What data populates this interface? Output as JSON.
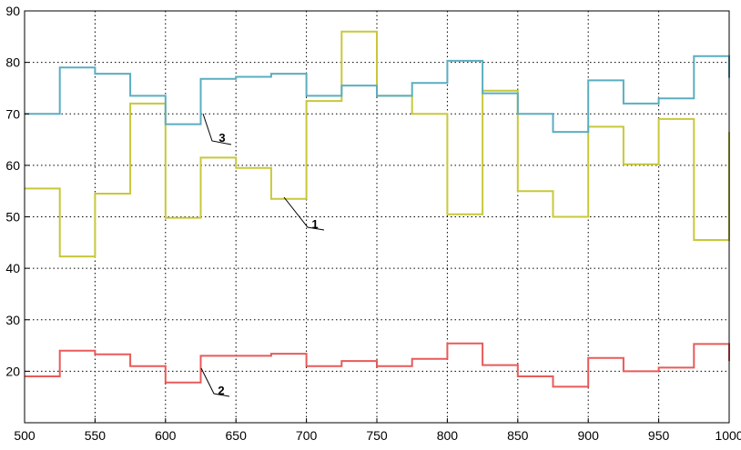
{
  "chart_data": {
    "type": "line",
    "title": "",
    "xlabel": "",
    "ylabel": "",
    "xlim": [
      500,
      1000
    ],
    "ylim": [
      10,
      90
    ],
    "grid": true,
    "grid_style": "dotted",
    "x_ticks": [
      "500",
      "550",
      "600",
      "650",
      "700",
      "750",
      "800",
      "850",
      "900",
      "950",
      "1000"
    ],
    "y_ticks": [
      "20",
      "30",
      "40",
      "50",
      "60",
      "70",
      "80",
      "90"
    ],
    "series": [
      {
        "name": "1",
        "color": "#c8c83a",
        "x": [
          500,
          525,
          525,
          550,
          550,
          575,
          575,
          600,
          600,
          625,
          625,
          650,
          650,
          675,
          675,
          700,
          700,
          725,
          725,
          750,
          750,
          775,
          775,
          800,
          800,
          825,
          825,
          850,
          850,
          875,
          875,
          900,
          900,
          925,
          925,
          950,
          950,
          975,
          975,
          1000,
          1000
        ],
        "y": [
          55.5,
          55.5,
          42.3,
          42.3,
          54.5,
          54.5,
          72,
          72,
          49.8,
          49.8,
          61.5,
          61.5,
          59.5,
          59.5,
          53.5,
          53.5,
          72.5,
          72.5,
          86,
          86,
          73.5,
          73.5,
          70,
          70,
          50.5,
          50.5,
          74.5,
          74.5,
          55,
          55,
          50,
          50,
          67.5,
          67.5,
          60.2,
          60.2,
          69,
          69,
          45.5,
          45.5,
          66.5
        ]
      },
      {
        "name": "2",
        "color": "#e85a5a",
        "x": [
          500,
          525,
          525,
          550,
          550,
          575,
          575,
          600,
          600,
          625,
          625,
          650,
          650,
          675,
          675,
          700,
          700,
          725,
          725,
          750,
          750,
          775,
          775,
          800,
          800,
          825,
          825,
          850,
          850,
          875,
          875,
          900,
          900,
          925,
          925,
          950,
          950,
          975,
          975,
          1000,
          1000
        ],
        "y": [
          19,
          19,
          24,
          24,
          23.3,
          23.3,
          21,
          21,
          17.8,
          17.8,
          23,
          23,
          23,
          23,
          23.4,
          23.4,
          21,
          21,
          22,
          22,
          21,
          21,
          22.4,
          22.4,
          25.4,
          25.4,
          21.2,
          21.2,
          19,
          19,
          17,
          17,
          22.6,
          22.6,
          20,
          20,
          20.7,
          20.7,
          25.3,
          25.3,
          22
        ]
      },
      {
        "name": "3",
        "color": "#5aaec0",
        "x": [
          500,
          525,
          525,
          550,
          550,
          575,
          575,
          600,
          600,
          625,
          625,
          650,
          650,
          675,
          675,
          700,
          700,
          725,
          725,
          750,
          750,
          775,
          775,
          800,
          800,
          825,
          825,
          850,
          850,
          875,
          875,
          900,
          900,
          925,
          925,
          950,
          950,
          975,
          975,
          1000,
          1000
        ],
        "y": [
          70,
          70,
          79,
          79,
          77.8,
          77.8,
          73.5,
          73.5,
          68,
          68,
          76.8,
          76.8,
          77.2,
          77.2,
          77.8,
          77.8,
          73.5,
          73.5,
          75.5,
          75.5,
          73.5,
          73.5,
          76,
          76,
          80.3,
          80.3,
          74,
          74,
          70,
          70,
          66.5,
          66.5,
          76.5,
          76.5,
          72,
          72,
          73,
          73,
          81.2,
          81.2,
          77
        ]
      }
    ],
    "annotations": [
      {
        "label": "1",
        "color": "#c8c83a"
      },
      {
        "label": "2",
        "color": "#e85a5a"
      },
      {
        "label": "3",
        "color": "#5aaec0"
      }
    ]
  }
}
